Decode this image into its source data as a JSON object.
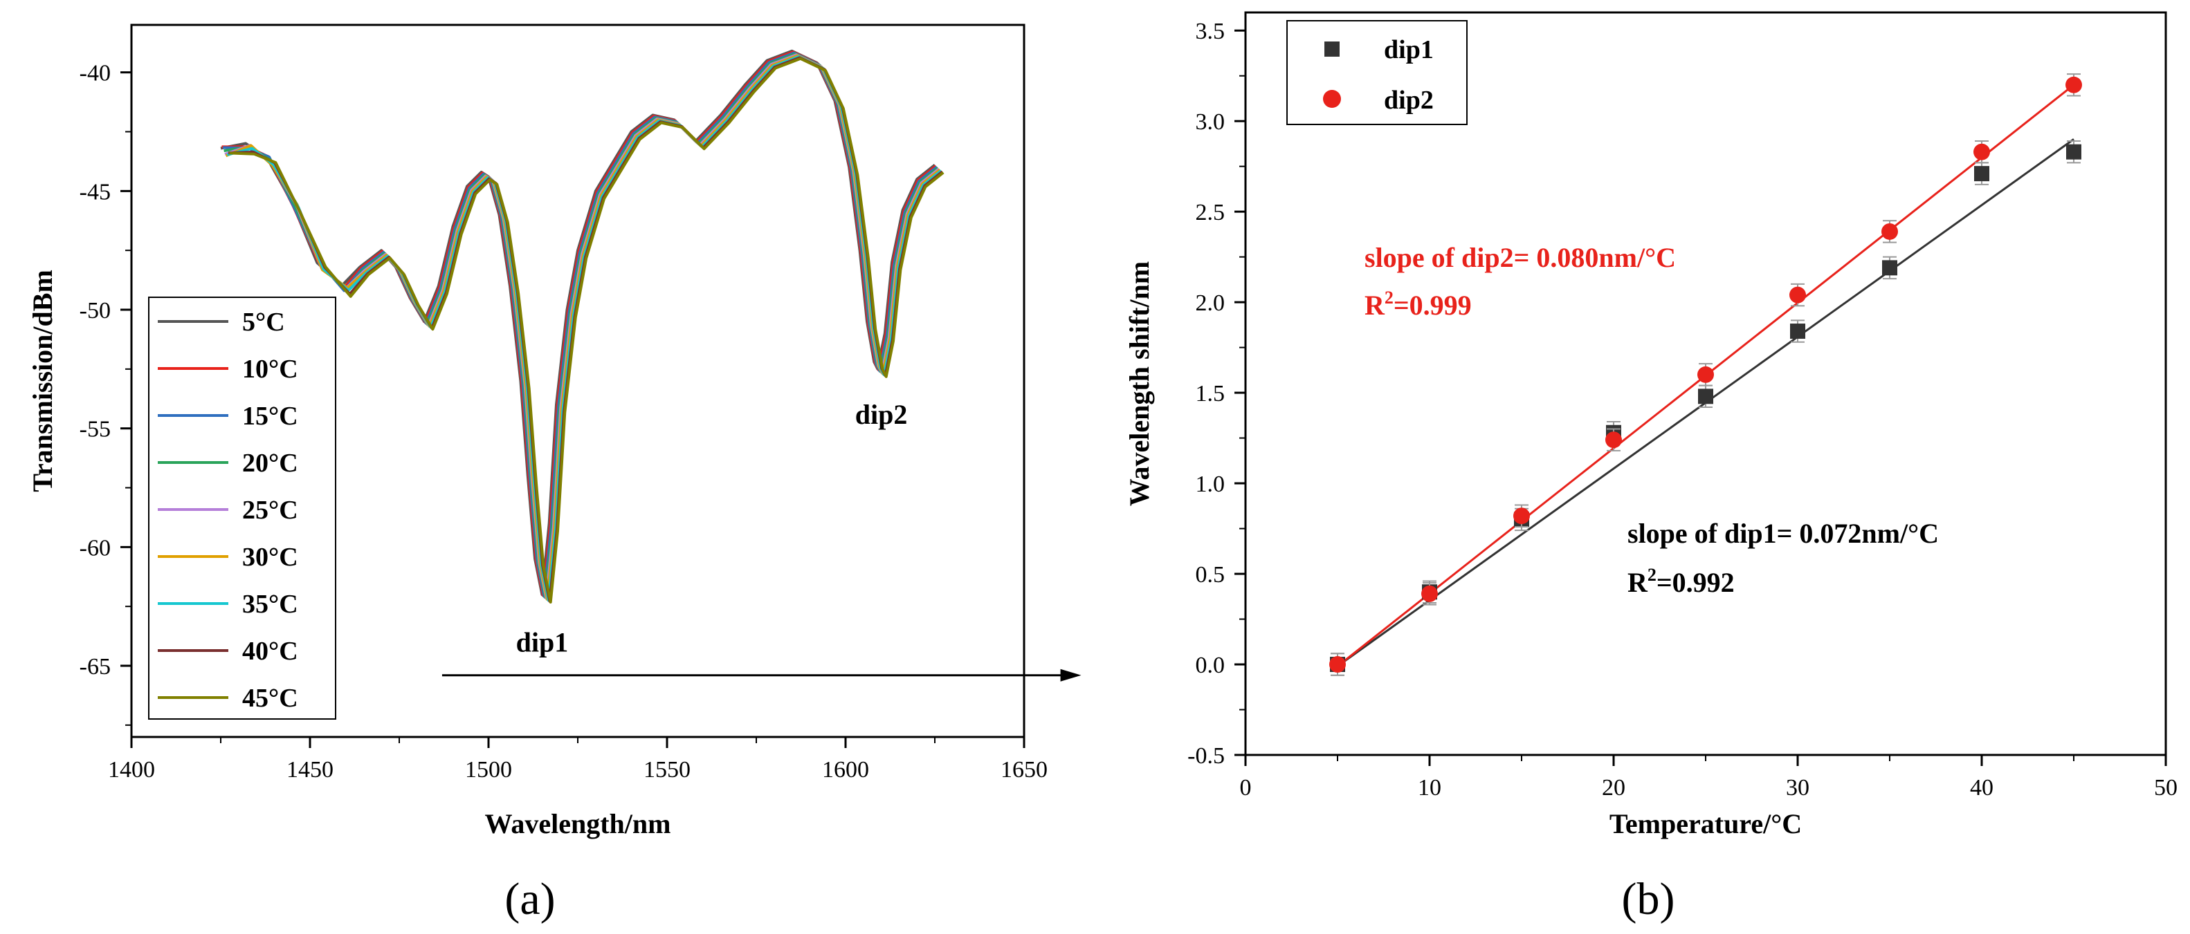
{
  "chart_data": [
    {
      "panel": "(a)",
      "type": "line",
      "xlabel": "Wavelength/nm",
      "ylabel": "Transmission/dBm",
      "xlim": [
        1400,
        1650
      ],
      "ylim": [
        -68,
        -38
      ],
      "xticks": [
        1400,
        1450,
        1500,
        1550,
        1600,
        1650
      ],
      "yticks": [
        -40,
        -45,
        -50,
        -55,
        -60,
        -65
      ],
      "base_curve": {
        "x": [
          1425,
          1432,
          1438,
          1445,
          1452,
          1459,
          1464,
          1470,
          1474,
          1478,
          1482,
          1486,
          1490,
          1494,
          1498,
          1500,
          1503,
          1506,
          1509,
          1511,
          1513,
          1515,
          1517,
          1519,
          1522,
          1525,
          1530,
          1540,
          1546,
          1552,
          1558,
          1565,
          1572,
          1578,
          1585,
          1592,
          1597,
          1601,
          1604,
          1606,
          1608,
          1609,
          1611,
          1613,
          1616,
          1620,
          1625
        ],
        "y": [
          -43.2,
          -43.0,
          -43.6,
          -45.5,
          -48.0,
          -49.0,
          -48.2,
          -47.5,
          -48.2,
          -49.5,
          -50.5,
          -49.0,
          -46.5,
          -44.8,
          -44.2,
          -44.4,
          -46.0,
          -49.0,
          -53.0,
          -57.0,
          -60.5,
          -62.0,
          -59.0,
          -54.0,
          -50.0,
          -47.5,
          -45.0,
          -42.5,
          -41.8,
          -42.0,
          -42.9,
          -41.8,
          -40.5,
          -39.5,
          -39.1,
          -39.6,
          -41.2,
          -44.0,
          -47.5,
          -50.5,
          -52.2,
          -52.5,
          -51.0,
          -48.0,
          -45.8,
          -44.5,
          -43.9
        ]
      },
      "series": [
        {
          "name": "5°C",
          "color": "#555555",
          "shift": 0.0
        },
        {
          "name": "10°C",
          "color": "#e8221b",
          "shift": 0.29
        },
        {
          "name": "15°C",
          "color": "#2f6fbf",
          "shift": 0.58
        },
        {
          "name": "20°C",
          "color": "#2aa45a",
          "shift": 0.9
        },
        {
          "name": "25°C",
          "color": "#b57fd9",
          "shift": 1.19
        },
        {
          "name": "30°C",
          "color": "#e0a000",
          "shift": 1.46
        },
        {
          "name": "35°C",
          "color": "#16c7d0",
          "shift": 1.79
        },
        {
          "name": "40°C",
          "color": "#7a2f2f",
          "shift": 2.14
        },
        {
          "name": "45°C",
          "color": "#808000",
          "shift": 2.38
        }
      ],
      "annotations": [
        {
          "text": "dip1",
          "x": 1515,
          "y": -64.4
        },
        {
          "text": "dip2",
          "x": 1610,
          "y": -54.8
        }
      ],
      "arrow": {
        "x1": 1487,
        "x2": 1666,
        "y": -65.4
      }
    },
    {
      "panel": "(b)",
      "type": "scatter",
      "xlabel": "Temperature/°C",
      "ylabel": "Wavelength shift/nm",
      "xlim": [
        0,
        50
      ],
      "ylim": [
        -0.5,
        3.6
      ],
      "xticks": [
        0,
        10,
        20,
        30,
        40,
        50
      ],
      "yticks": [
        -0.5,
        0.0,
        0.5,
        1.0,
        1.5,
        2.0,
        2.5,
        3.0,
        3.5
      ],
      "series": [
        {
          "name": "dip1",
          "marker": "square",
          "color": "#333333",
          "x": [
            5,
            10,
            15,
            20,
            25,
            30,
            35,
            40,
            45
          ],
          "y": [
            0.0,
            0.4,
            0.8,
            1.28,
            1.48,
            1.84,
            2.19,
            2.71,
            2.83
          ],
          "err": 0.06,
          "fit": {
            "x": [
              5,
              45
            ],
            "y": [
              -0.01,
              2.9
            ]
          }
        },
        {
          "name": "dip2",
          "marker": "circle",
          "color": "#e8221b",
          "x": [
            5,
            10,
            15,
            20,
            25,
            30,
            35,
            40,
            45
          ],
          "y": [
            0.0,
            0.39,
            0.82,
            1.24,
            1.6,
            2.04,
            2.39,
            2.83,
            3.2
          ],
          "err": 0.06,
          "fit": {
            "x": [
              5,
              45
            ],
            "y": [
              -0.01,
              3.2
            ]
          }
        }
      ],
      "annotations": {
        "dip2_slope": "slope of dip2= 0.080nm/°C",
        "dip2_r2_label": "R",
        "dip2_r2_sup": "2",
        "dip2_r2_value": "=0.999",
        "dip1_slope": "slope of dip1= 0.072nm/°C",
        "dip1_r2_label": "R",
        "dip1_r2_sup": "2",
        "dip1_r2_value": "=0.992"
      }
    }
  ],
  "captions": {
    "a": "(a)",
    "b": "(b)"
  }
}
